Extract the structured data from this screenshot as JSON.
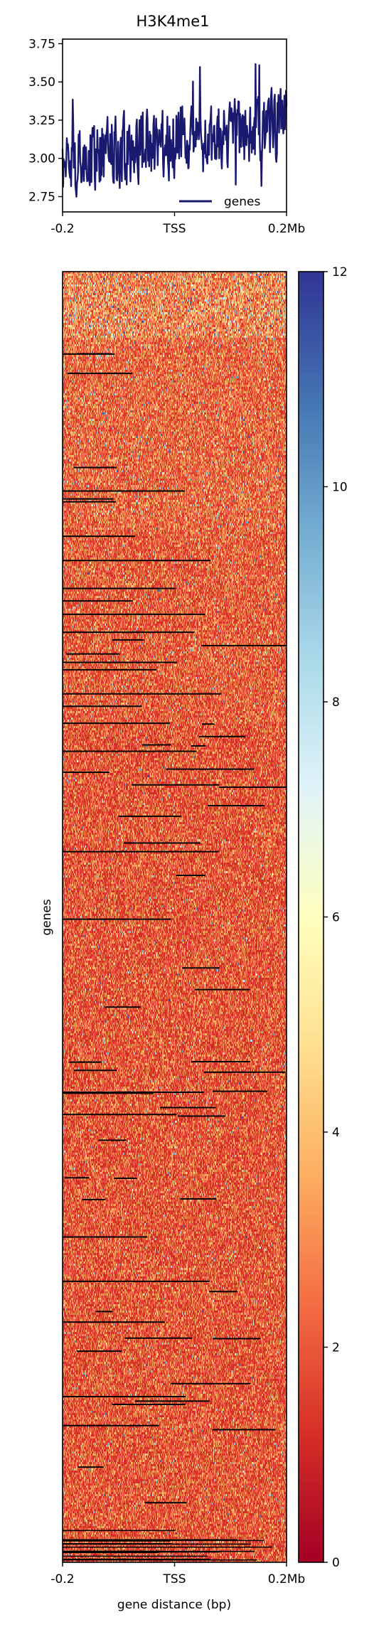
{
  "chart_data": [
    {
      "type": "line",
      "title": "H3K4me1",
      "xlabel": "",
      "ylabel": "",
      "x_ticks": [
        "-0.2",
        "TSS",
        "0.2Mb"
      ],
      "y_ticks": [
        "2.75",
        "3.00",
        "3.25",
        "3.50",
        "3.75"
      ],
      "ylim": [
        2.65,
        3.78
      ],
      "legend": {
        "placement": "lower-right",
        "entries": [
          "genes"
        ]
      },
      "series": [
        {
          "name": "genes",
          "color": "#191970",
          "x": [
            -0.2,
            0.2
          ],
          "trend_start": 2.98,
          "trend_end": 3.22,
          "range_min": 2.63,
          "range_max": 3.73
        }
      ]
    },
    {
      "type": "heatmap",
      "title": "",
      "xlabel": "gene distance (bp)",
      "ylabel": "genes",
      "x_ticks": [
        "-0.2",
        "TSS",
        "0.2Mb"
      ],
      "colorbar": {
        "vmin": 0,
        "vmax": 12,
        "ticks": [
          "0",
          "2",
          "4",
          "6",
          "8",
          "10",
          "12"
        ],
        "colormap": "RdYlBu"
      },
      "typical_value_range": [
        1,
        4
      ]
    }
  ]
}
